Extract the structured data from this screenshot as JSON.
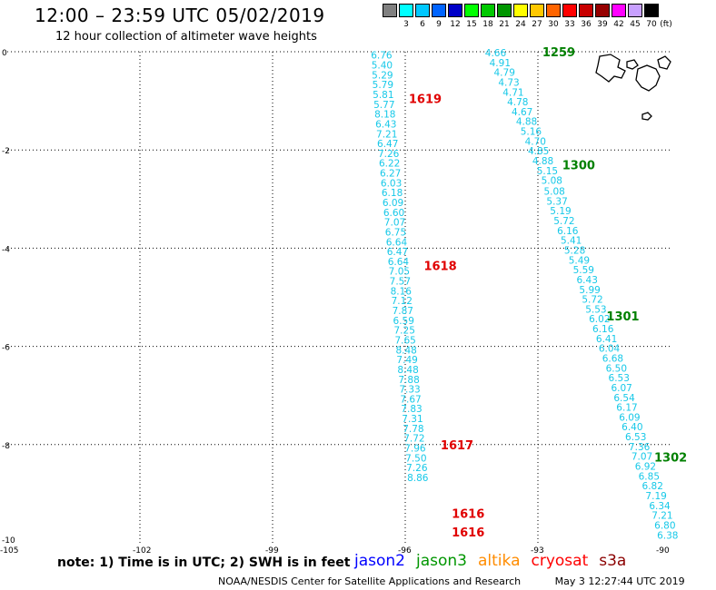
{
  "header": {
    "title": "12:00 – 23:59 UTC 05/02/2019",
    "subtitle": "12 hour collection of altimeter wave heights"
  },
  "legend": {
    "unit_label": "(ft)",
    "bins": [
      {
        "label": "",
        "color": "#808080"
      },
      {
        "label": "3",
        "color": "#00ffff"
      },
      {
        "label": "6",
        "color": "#00c8ff"
      },
      {
        "label": "9",
        "color": "#0064ff"
      },
      {
        "label": "12",
        "color": "#0000c8"
      },
      {
        "label": "15",
        "color": "#00ff00"
      },
      {
        "label": "18",
        "color": "#00c800"
      },
      {
        "label": "21",
        "color": "#009600"
      },
      {
        "label": "24",
        "color": "#ffff00"
      },
      {
        "label": "27",
        "color": "#ffc800"
      },
      {
        "label": "30",
        "color": "#ff6400"
      },
      {
        "label": "33",
        "color": "#ff0000"
      },
      {
        "label": "36",
        "color": "#c80000"
      },
      {
        "label": "39",
        "color": "#960000"
      },
      {
        "label": "42",
        "color": "#ff00ff"
      },
      {
        "label": "45",
        "color": "#c8a0ff"
      },
      {
        "label": "70",
        "color": "#000000"
      }
    ]
  },
  "map": {
    "lon_range": [
      -105,
      -90
    ],
    "lat_range": [
      -10,
      0
    ],
    "lon_ticks": [
      "-105",
      "-102",
      "-99",
      "-96",
      "-93",
      "-90"
    ],
    "lat_ticks": [
      "0",
      "-2",
      "-4",
      "-6",
      "-8",
      "-10"
    ],
    "grid": "dotted",
    "swh_color": "#16c8e8",
    "tracks": [
      {
        "satellite": "cryosat",
        "color": "#e00000",
        "points": [
          {
            "lon": -96.53,
            "lat": -0.05,
            "swh": "6.76"
          },
          {
            "lon": -96.52,
            "lat": -0.25,
            "swh": "5.40"
          },
          {
            "lon": -96.51,
            "lat": -0.45,
            "swh": "5.29"
          },
          {
            "lon": -96.5,
            "lat": -0.65,
            "swh": "5.79"
          },
          {
            "lon": -96.49,
            "lat": -0.85,
            "swh": "5.81"
          },
          {
            "lon": -96.47,
            "lat": -1.05,
            "swh": "5.77"
          },
          {
            "lon": -96.45,
            "lat": -1.25,
            "swh": "8.18"
          },
          {
            "lon": -96.43,
            "lat": -1.45,
            "swh": "6.43"
          },
          {
            "lon": -96.41,
            "lat": -1.65,
            "swh": "7.21"
          },
          {
            "lon": -96.39,
            "lat": -1.85,
            "swh": "6.47"
          },
          {
            "lon": -96.37,
            "lat": -2.05,
            "swh": "7.26"
          },
          {
            "lon": -96.35,
            "lat": -2.25,
            "swh": "6.22"
          },
          {
            "lon": -96.33,
            "lat": -2.45,
            "swh": "6.27"
          },
          {
            "lon": -96.31,
            "lat": -2.65,
            "swh": "6.03"
          },
          {
            "lon": -96.29,
            "lat": -2.85,
            "swh": "6.18"
          },
          {
            "lon": -96.27,
            "lat": -3.05,
            "swh": "6.09"
          },
          {
            "lon": -96.25,
            "lat": -3.25,
            "swh": "6.60"
          },
          {
            "lon": -96.23,
            "lat": -3.45,
            "swh": "7.07"
          },
          {
            "lon": -96.21,
            "lat": -3.65,
            "swh": "6.75"
          },
          {
            "lon": -96.19,
            "lat": -3.85,
            "swh": "6.64"
          },
          {
            "lon": -96.17,
            "lat": -4.05,
            "swh": "6.47"
          },
          {
            "lon": -96.15,
            "lat": -4.25,
            "swh": "6.64"
          },
          {
            "lon": -96.13,
            "lat": -4.45,
            "swh": "7.05"
          },
          {
            "lon": -96.11,
            "lat": -4.65,
            "swh": "7.57"
          },
          {
            "lon": -96.09,
            "lat": -4.85,
            "swh": "8.16"
          },
          {
            "lon": -96.07,
            "lat": -5.05,
            "swh": "7.12"
          },
          {
            "lon": -96.05,
            "lat": -5.25,
            "swh": "7.87"
          },
          {
            "lon": -96.03,
            "lat": -5.45,
            "swh": "6.59"
          },
          {
            "lon": -96.01,
            "lat": -5.65,
            "swh": "7.25"
          },
          {
            "lon": -95.99,
            "lat": -5.85,
            "swh": "7.65"
          },
          {
            "lon": -95.97,
            "lat": -6.05,
            "swh": "8.48"
          },
          {
            "lon": -95.95,
            "lat": -6.25,
            "swh": "7.49"
          },
          {
            "lon": -95.93,
            "lat": -6.45,
            "swh": "8.48"
          },
          {
            "lon": -95.91,
            "lat": -6.65,
            "swh": "7.88"
          },
          {
            "lon": -95.89,
            "lat": -6.85,
            "swh": "7.33"
          },
          {
            "lon": -95.87,
            "lat": -7.05,
            "swh": "7.67"
          },
          {
            "lon": -95.85,
            "lat": -7.25,
            "swh": "7.83"
          },
          {
            "lon": -95.83,
            "lat": -7.45,
            "swh": "7.31"
          },
          {
            "lon": -95.81,
            "lat": -7.65,
            "swh": "7.78"
          },
          {
            "lon": -95.79,
            "lat": -7.85,
            "swh": "7.72"
          },
          {
            "lon": -95.77,
            "lat": -8.05,
            "swh": "7.96"
          },
          {
            "lon": -95.75,
            "lat": -8.25,
            "swh": "7.50"
          },
          {
            "lon": -95.73,
            "lat": -8.45,
            "swh": "7.26"
          },
          {
            "lon": -95.71,
            "lat": -8.65,
            "swh": "8.86"
          }
        ],
        "time_labels": [
          {
            "lon": -95.92,
            "lat": -0.95,
            "text": "1619"
          },
          {
            "lon": -95.58,
            "lat": -4.35,
            "text": "1618"
          },
          {
            "lon": -95.2,
            "lat": -8.0,
            "text": "1617"
          },
          {
            "lon": -94.95,
            "lat": -9.4,
            "text": "1616"
          },
          {
            "lon": -94.95,
            "lat": -9.78,
            "text": "1616"
          }
        ]
      },
      {
        "satellite": "jason3",
        "color": "#008000",
        "points": [
          {
            "lon": -93.95,
            "lat": 0.0,
            "swh": "4.66"
          },
          {
            "lon": -93.85,
            "lat": -0.2,
            "swh": "4.91"
          },
          {
            "lon": -93.75,
            "lat": -0.4,
            "swh": "4.79"
          },
          {
            "lon": -93.65,
            "lat": -0.6,
            "swh": "4.73"
          },
          {
            "lon": -93.55,
            "lat": -0.8,
            "swh": "4.71"
          },
          {
            "lon": -93.45,
            "lat": -1.0,
            "swh": "4.78"
          },
          {
            "lon": -93.35,
            "lat": -1.2,
            "swh": "4.67"
          },
          {
            "lon": -93.25,
            "lat": -1.4,
            "swh": "4.88"
          },
          {
            "lon": -93.15,
            "lat": -1.6,
            "swh": "5.16"
          },
          {
            "lon": -93.05,
            "lat": -1.8,
            "swh": "4.70"
          },
          {
            "lon": -92.98,
            "lat": -2.0,
            "swh": "4.85"
          },
          {
            "lon": -92.88,
            "lat": -2.2,
            "swh": "4.88"
          },
          {
            "lon": -92.78,
            "lat": -2.4,
            "swh": "5.15"
          },
          {
            "lon": -92.68,
            "lat": -2.6,
            "swh": "5.08"
          },
          {
            "lon": -92.62,
            "lat": -2.82,
            "swh": "5.08"
          },
          {
            "lon": -92.56,
            "lat": -3.02,
            "swh": "5.37"
          },
          {
            "lon": -92.48,
            "lat": -3.22,
            "swh": "5.19"
          },
          {
            "lon": -92.4,
            "lat": -3.42,
            "swh": "5.72"
          },
          {
            "lon": -92.32,
            "lat": -3.62,
            "swh": "6.16"
          },
          {
            "lon": -92.24,
            "lat": -3.82,
            "swh": "5.41"
          },
          {
            "lon": -92.16,
            "lat": -4.02,
            "swh": "5.28"
          },
          {
            "lon": -92.06,
            "lat": -4.22,
            "swh": "5.49"
          },
          {
            "lon": -91.96,
            "lat": -4.42,
            "swh": "5.59"
          },
          {
            "lon": -91.88,
            "lat": -4.62,
            "swh": "6.43"
          },
          {
            "lon": -91.82,
            "lat": -4.82,
            "swh": "5.99"
          },
          {
            "lon": -91.76,
            "lat": -5.02,
            "swh": "5.72"
          },
          {
            "lon": -91.68,
            "lat": -5.22,
            "swh": "5.53"
          },
          {
            "lon": -91.6,
            "lat": -5.42,
            "swh": "6.02"
          },
          {
            "lon": -91.52,
            "lat": -5.62,
            "swh": "6.16"
          },
          {
            "lon": -91.44,
            "lat": -5.82,
            "swh": "6.41"
          },
          {
            "lon": -91.38,
            "lat": -6.02,
            "swh": "6.04"
          },
          {
            "lon": -91.3,
            "lat": -6.22,
            "swh": "6.68"
          },
          {
            "lon": -91.22,
            "lat": -6.42,
            "swh": "6.50"
          },
          {
            "lon": -91.16,
            "lat": -6.62,
            "swh": "6.53"
          },
          {
            "lon": -91.1,
            "lat": -6.82,
            "swh": "6.07"
          },
          {
            "lon": -91.04,
            "lat": -7.02,
            "swh": "6.54"
          },
          {
            "lon": -90.98,
            "lat": -7.22,
            "swh": "6.17"
          },
          {
            "lon": -90.92,
            "lat": -7.42,
            "swh": "6.09"
          },
          {
            "lon": -90.86,
            "lat": -7.62,
            "swh": "6.40"
          },
          {
            "lon": -90.78,
            "lat": -7.82,
            "swh": "6.53"
          },
          {
            "lon": -90.7,
            "lat": -8.02,
            "swh": "7.36"
          },
          {
            "lon": -90.64,
            "lat": -8.22,
            "swh": "7.07"
          },
          {
            "lon": -90.56,
            "lat": -8.42,
            "swh": "6.92"
          },
          {
            "lon": -90.48,
            "lat": -8.62,
            "swh": "6.85"
          },
          {
            "lon": -90.4,
            "lat": -8.82,
            "swh": "6.82"
          },
          {
            "lon": -90.32,
            "lat": -9.02,
            "swh": "7.19"
          },
          {
            "lon": -90.24,
            "lat": -9.22,
            "swh": "6.34"
          },
          {
            "lon": -90.18,
            "lat": -9.42,
            "swh": "7.21"
          },
          {
            "lon": -90.12,
            "lat": -9.62,
            "swh": "6.80"
          },
          {
            "lon": -90.06,
            "lat": -9.82,
            "swh": "6.38"
          }
        ],
        "time_labels": [
          {
            "lon": -92.9,
            "lat": 0.0,
            "text": "1259"
          },
          {
            "lon": -92.45,
            "lat": -2.3,
            "text": "1300"
          },
          {
            "lon": -91.45,
            "lat": -5.38,
            "text": "1301"
          },
          {
            "lon": -90.37,
            "lat": -8.25,
            "text": "1302"
          }
        ]
      }
    ],
    "islands_label": ""
  },
  "footer": {
    "note": "note: 1) Time is in UTC; 2) SWH is in feet",
    "satellites": [
      {
        "name": "jason2",
        "color": "#0000ff"
      },
      {
        "name": "jason3",
        "color": "#009600"
      },
      {
        "name": "altika",
        "color": "#ff8c00"
      },
      {
        "name": "cryosat",
        "color": "#ff0000"
      },
      {
        "name": "s3a",
        "color": "#8b0000"
      }
    ],
    "credit": "NOAA/NESDIS Center for Satellite Applications and Research",
    "timestamp": "May  3 12:27:44 UTC 2019"
  }
}
